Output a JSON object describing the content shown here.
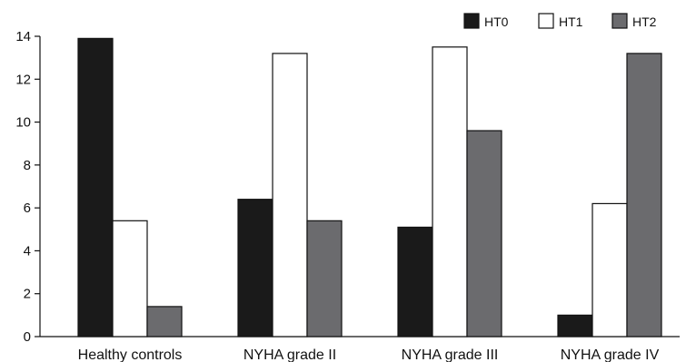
{
  "chart_data": {
    "type": "bar",
    "categories": [
      "Healthy controls",
      "NYHA grade II",
      "NYHA grade III",
      "NYHA grade IV"
    ],
    "series": [
      {
        "name": "HT0",
        "color": "#1a1a1a",
        "values": [
          13.9,
          6.4,
          5.1,
          1.0
        ]
      },
      {
        "name": "HT1",
        "color": "#ffffff",
        "values": [
          5.4,
          13.2,
          13.5,
          6.2
        ]
      },
      {
        "name": "HT2",
        "color": "#6b6b6e",
        "values": [
          1.4,
          5.4,
          9.6,
          13.2
        ]
      }
    ],
    "ylim": [
      0,
      14
    ],
    "yticks": [
      0,
      2,
      4,
      6,
      8,
      10,
      12,
      14
    ],
    "xlabel": "",
    "ylabel": "",
    "grid": false,
    "legend": "top-right"
  }
}
